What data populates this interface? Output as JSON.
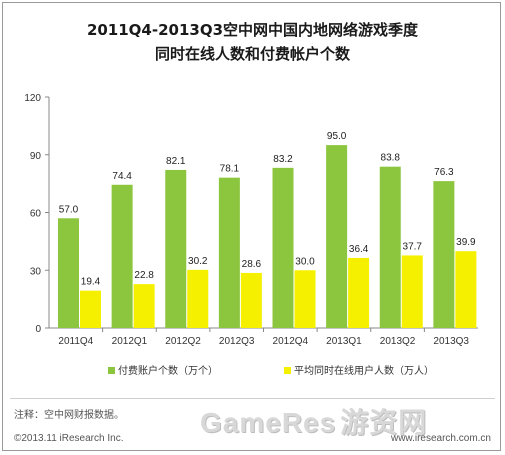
{
  "chart_data": {
    "type": "bar",
    "title_line1": "2011Q4-2013Q3空中网中国内地网络游戏季度",
    "title_line2": "同时在线人数和付费帐户个数",
    "categories": [
      "2011Q4",
      "2012Q1",
      "2012Q2",
      "2012Q3",
      "2012Q4",
      "2013Q1",
      "2013Q2",
      "2013Q3"
    ],
    "series": [
      {
        "name": "付费账户个数（万个）",
        "values": [
          57.0,
          74.4,
          82.1,
          78.1,
          83.2,
          95.0,
          83.8,
          76.3
        ],
        "color": "#8cc63f"
      },
      {
        "name": "平均同时在线用户人数（万人）",
        "values": [
          19.4,
          22.8,
          30.2,
          28.6,
          30.0,
          36.4,
          37.7,
          39.9
        ],
        "color": "#f5f000"
      }
    ],
    "yticks": [
      0,
      30,
      60,
      90,
      120
    ],
    "ylim": [
      0,
      120
    ],
    "grid": false,
    "legend": "bottom"
  },
  "footer": {
    "note": "注释：空中网财报数据。",
    "copyright": "©2013.11 iResearch Inc.",
    "site": "www.iresearch.com.cn"
  },
  "watermark": {
    "brand": "GameRes",
    "cn": "游资网"
  }
}
